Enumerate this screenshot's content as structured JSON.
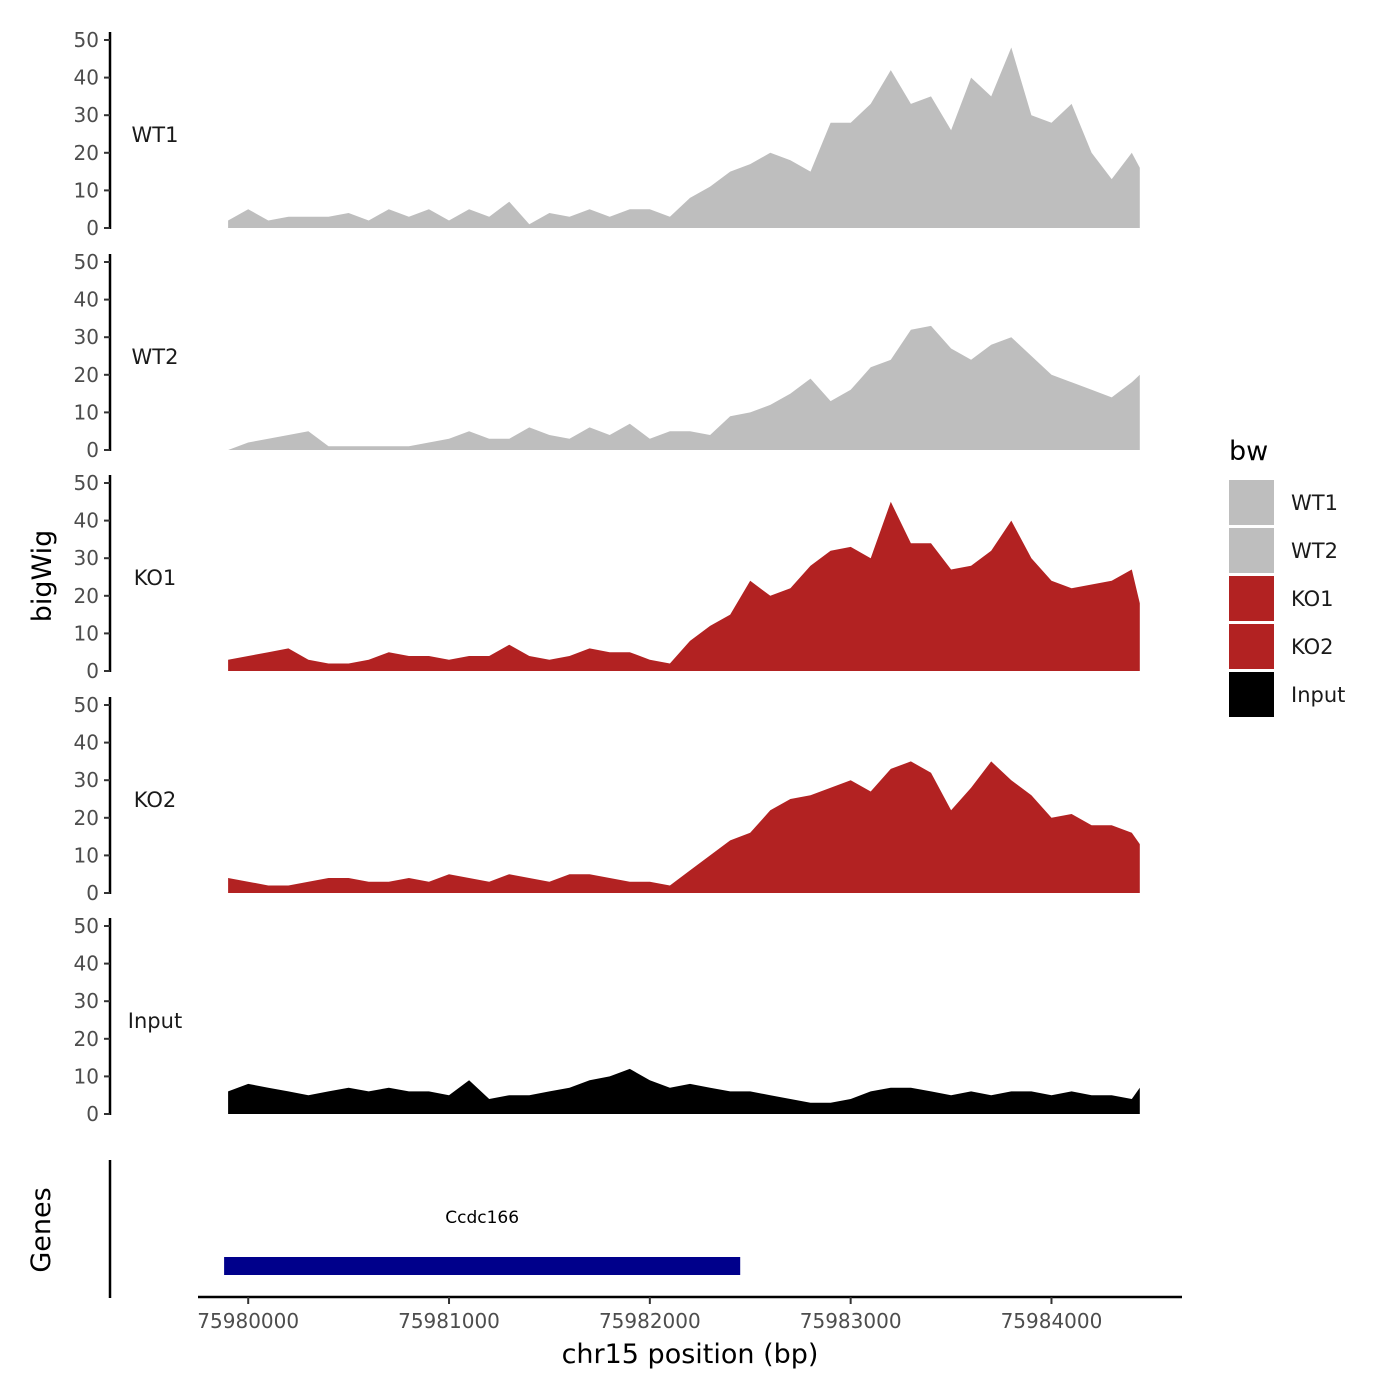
{
  "chart_data": {
    "type": "area",
    "xlabel": "chr15 position (bp)",
    "ylabel": "bigWig",
    "genes_label": "Genes",
    "xlim": [
      75979750,
      75984650
    ],
    "ylim": [
      0,
      50
    ],
    "yticks": [
      0,
      10,
      20,
      30,
      40,
      50
    ],
    "xticks": [
      {
        "value": 75980000,
        "label": "75980000"
      },
      {
        "value": 75981000,
        "label": "75981000"
      },
      {
        "value": 75982000,
        "label": "75982000"
      },
      {
        "value": 75983000,
        "label": "75983000"
      },
      {
        "value": 75984000,
        "label": "75984000"
      }
    ],
    "legend": {
      "title": "bw",
      "position": "right",
      "entries": [
        {
          "label": "WT1",
          "color": "#bebebe"
        },
        {
          "label": "WT2",
          "color": "#bebebe"
        },
        {
          "label": "KO1",
          "color": "#b22222"
        },
        {
          "label": "KO2",
          "color": "#b22222"
        },
        {
          "label": "Input",
          "color": "#000000"
        }
      ]
    },
    "x": [
      75979900,
      75980000,
      75980100,
      75980200,
      75980300,
      75980400,
      75980500,
      75980600,
      75980700,
      75980800,
      75980900,
      75981000,
      75981100,
      75981200,
      75981300,
      75981400,
      75981500,
      75981600,
      75981700,
      75981800,
      75981900,
      75982000,
      75982100,
      75982200,
      75982300,
      75982400,
      75982500,
      75982600,
      75982700,
      75982800,
      75982900,
      75983000,
      75983100,
      75983200,
      75983300,
      75983400,
      75983500,
      75983600,
      75983700,
      75983800,
      75983900,
      75984000,
      75984100,
      75984200,
      75984300,
      75984400,
      75984440
    ],
    "series": [
      {
        "name": "WT1",
        "color": "#bebebe",
        "values": [
          2,
          5,
          2,
          3,
          3,
          3,
          4,
          2,
          5,
          3,
          5,
          2,
          5,
          3,
          7,
          1,
          4,
          3,
          5,
          3,
          5,
          5,
          3,
          8,
          11,
          15,
          17,
          20,
          18,
          15,
          28,
          28,
          33,
          42,
          33,
          35,
          26,
          40,
          35,
          48,
          30,
          28,
          33,
          20,
          13,
          20,
          16
        ]
      },
      {
        "name": "WT2",
        "color": "#bebebe",
        "values": [
          0,
          2,
          3,
          4,
          5,
          1,
          1,
          1,
          1,
          1,
          2,
          3,
          5,
          3,
          3,
          6,
          4,
          3,
          6,
          4,
          7,
          3,
          5,
          5,
          4,
          9,
          10,
          12,
          15,
          19,
          13,
          16,
          22,
          24,
          32,
          33,
          27,
          24,
          28,
          30,
          25,
          20,
          18,
          16,
          14,
          18,
          20
        ]
      },
      {
        "name": "KO1",
        "color": "#b22222",
        "values": [
          3,
          4,
          5,
          6,
          3,
          2,
          2,
          3,
          5,
          4,
          4,
          3,
          4,
          4,
          7,
          4,
          3,
          4,
          6,
          5,
          5,
          3,
          2,
          8,
          12,
          15,
          24,
          20,
          22,
          28,
          32,
          33,
          30,
          45,
          34,
          34,
          27,
          28,
          32,
          40,
          30,
          24,
          22,
          23,
          24,
          27,
          18
        ]
      },
      {
        "name": "KO2",
        "color": "#b22222",
        "values": [
          4,
          3,
          2,
          2,
          3,
          4,
          4,
          3,
          3,
          4,
          3,
          5,
          4,
          3,
          5,
          4,
          3,
          5,
          5,
          4,
          3,
          3,
          2,
          6,
          10,
          14,
          16,
          22,
          25,
          26,
          28,
          30,
          27,
          33,
          35,
          32,
          22,
          28,
          35,
          30,
          26,
          20,
          21,
          18,
          18,
          16,
          13
        ]
      },
      {
        "name": "Input",
        "color": "#000000",
        "values": [
          6,
          8,
          7,
          6,
          5,
          6,
          7,
          6,
          7,
          6,
          6,
          5,
          9,
          4,
          5,
          5,
          6,
          7,
          9,
          10,
          12,
          9,
          7,
          8,
          7,
          6,
          6,
          5,
          4,
          3,
          3,
          4,
          6,
          7,
          7,
          6,
          5,
          6,
          5,
          6,
          6,
          5,
          6,
          5,
          5,
          4,
          7
        ]
      }
    ],
    "gene": {
      "name": "Ccdc166",
      "start": 75979880,
      "end": 75982450,
      "color": "#00008b"
    }
  }
}
